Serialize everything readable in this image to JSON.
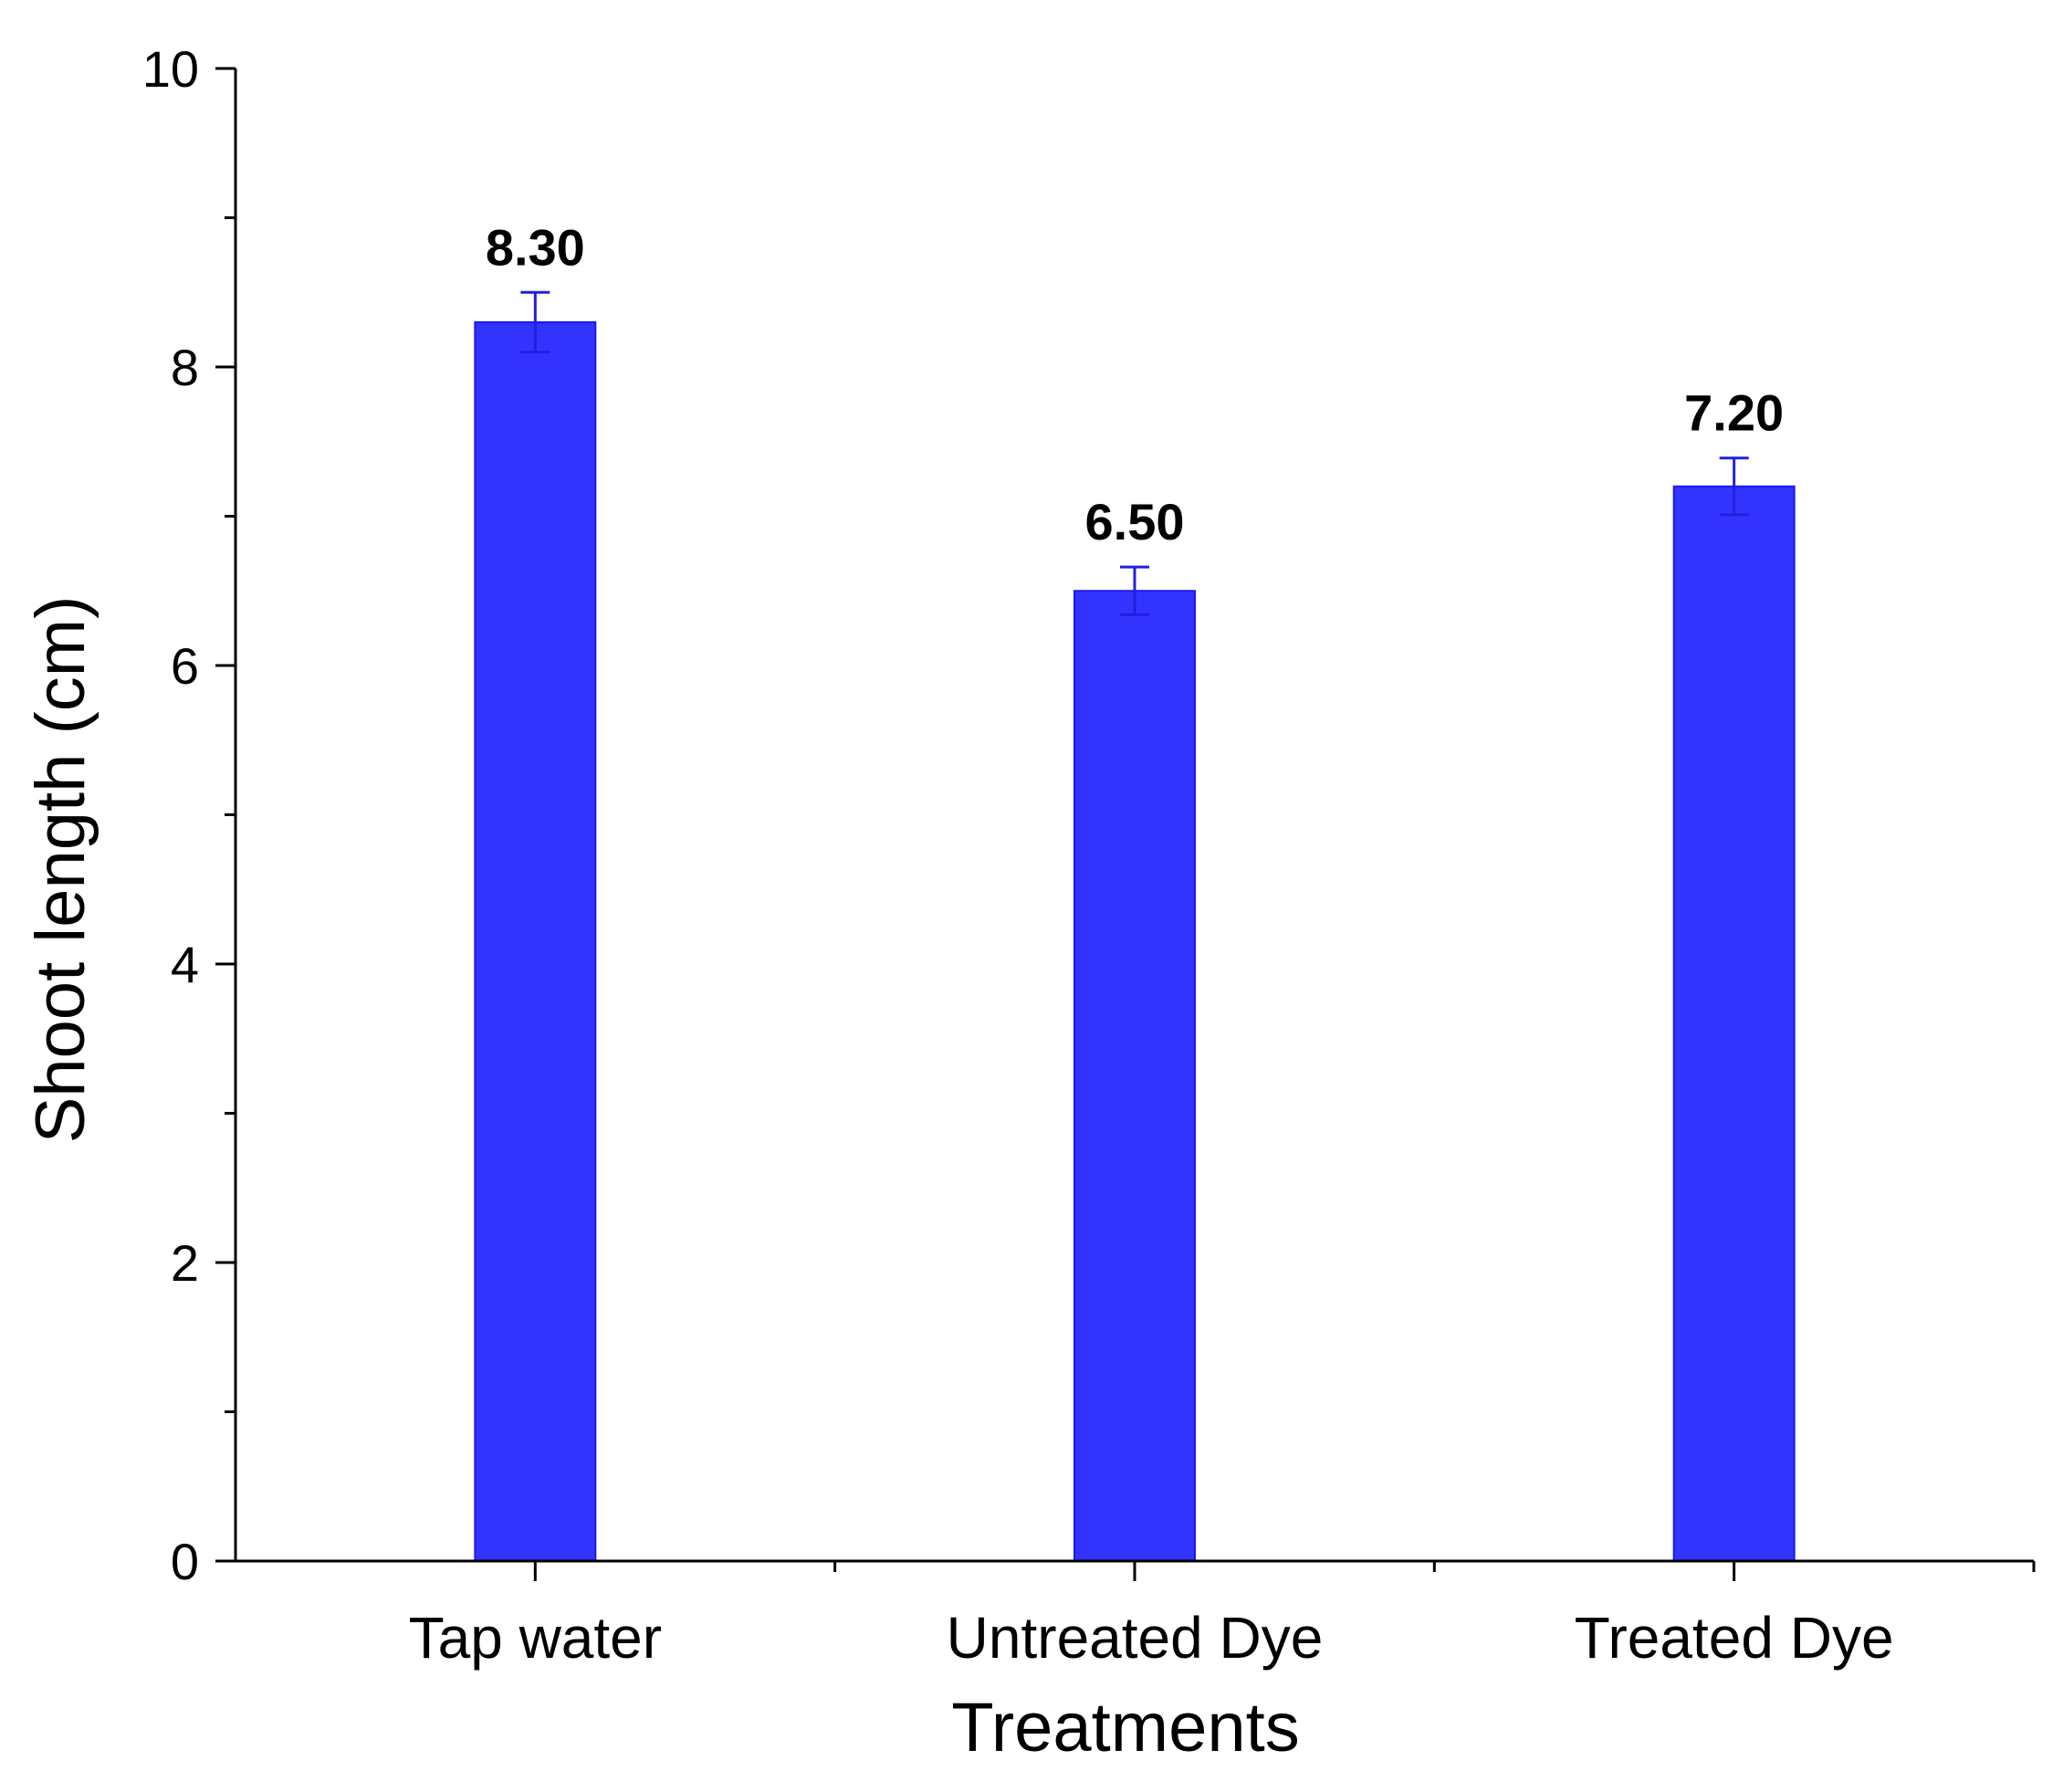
{
  "chart_data": {
    "type": "bar",
    "title": "",
    "xlabel": "Treatments",
    "ylabel": "Shoot length (cm)",
    "categories": [
      "Tap water",
      "Untreated Dye",
      "Treated Dye"
    ],
    "values": [
      8.3,
      6.5,
      7.2
    ],
    "data_labels": [
      "8.30",
      "6.50",
      "7.20"
    ],
    "error_bars": [
      0.2,
      0.16,
      0.19
    ],
    "ylim": [
      0,
      10
    ],
    "yticks": [
      0,
      2,
      4,
      6,
      8,
      10
    ],
    "ytick_labels": [
      "0",
      "2",
      "4",
      "6",
      "8",
      "10"
    ],
    "grid": false,
    "colors": {
      "bar_fill": "#3333ff",
      "bar_edge": "#1a1aee",
      "error_bar": "#2020e0",
      "axis": "#000000"
    }
  }
}
